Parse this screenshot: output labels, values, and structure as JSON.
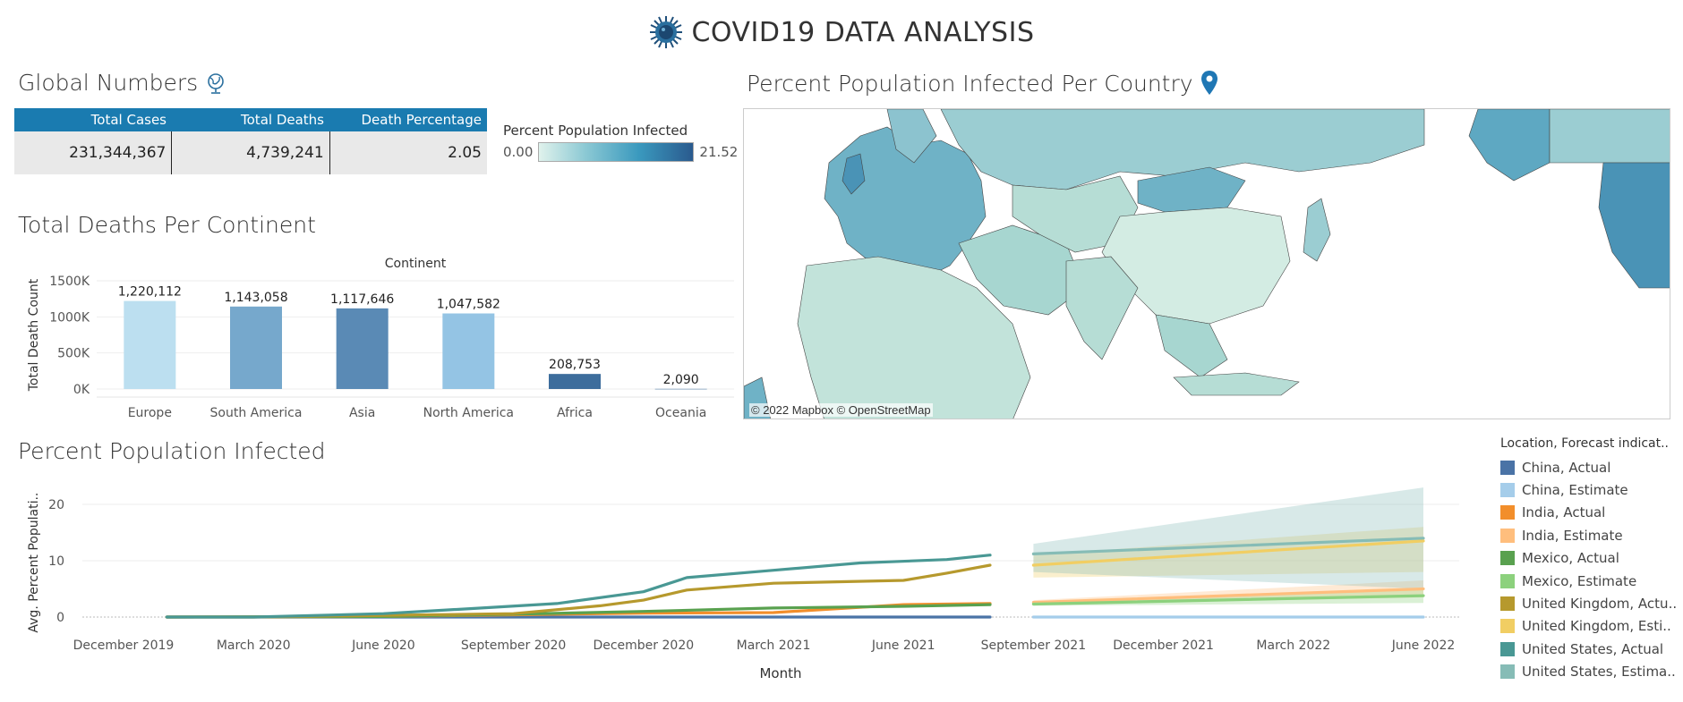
{
  "header": {
    "title": "COVID19 DATA ANALYSIS",
    "icon": "virus-icon"
  },
  "global_numbers": {
    "title": "Global Numbers",
    "icon": "globe-icon",
    "columns": [
      "Total Cases",
      "Total Deaths",
      "Death Percentage"
    ],
    "values": [
      "231,344,367",
      "4,739,241",
      "2.05"
    ]
  },
  "map": {
    "title": "Percent Population Infected Per Country",
    "icon": "map-pin-icon",
    "credit": "© 2022 Mapbox © OpenStreetMap",
    "legend": {
      "title": "Percent Population Infected",
      "min": "0.00",
      "max": "21.52"
    }
  },
  "colors": {
    "header_bar": "#1a7bb0",
    "map_low": "#e0f2ec",
    "map_high": "#2a5a8e"
  },
  "chart_data": [
    {
      "type": "bar",
      "title": "Total Deaths Per Continent",
      "xlabel_top": "Continent",
      "ylabel": "Total Death Count",
      "categories": [
        "Europe",
        "South America",
        "Asia",
        "North America",
        "Africa",
        "Oceania"
      ],
      "values": [
        1220112,
        1143058,
        1117646,
        1047582,
        208753,
        2090
      ],
      "value_labels": [
        "1,220,112",
        "1,143,058",
        "1,117,646",
        "1,047,582",
        "208,753",
        "2,090"
      ],
      "colors": [
        "#bcdff0",
        "#76a8cc",
        "#5a8ab5",
        "#94c4e4",
        "#3d6d9c",
        "#3d6d9c"
      ],
      "yticks": [
        0,
        500000,
        1000000,
        1500000
      ],
      "ytick_labels": [
        "0K",
        "500K",
        "1000K",
        "1500K"
      ],
      "ylim": [
        0,
        1500000
      ]
    },
    {
      "type": "line",
      "title": "Percent Population Infected",
      "xlabel": "Month",
      "ylabel": "Avg. Percent Populati..",
      "xticks": [
        "December 2019",
        "March 2020",
        "June 2020",
        "September 2020",
        "December 2020",
        "March 2021",
        "June 2021",
        "September 2021",
        "December 2021",
        "March 2022",
        "June 2022"
      ],
      "xtick_dates": [
        "2019-12",
        "2020-03",
        "2020-06",
        "2020-09",
        "2020-12",
        "2021-03",
        "2021-06",
        "2021-09",
        "2021-12",
        "2022-03",
        "2022-06"
      ],
      "yticks": [
        0,
        10,
        20
      ],
      "ylim": [
        -1.5,
        24
      ],
      "legend_title": "Location, Forecast indicat..",
      "series": [
        {
          "name": "China, Actual",
          "color": "#4a73a6",
          "kind": "actual",
          "x": [
            "2020-01",
            "2020-03",
            "2020-06",
            "2020-09",
            "2020-12",
            "2021-03",
            "2021-06",
            "2021-08"
          ],
          "y": [
            0,
            0,
            0,
            0,
            0,
            0,
            0,
            0
          ]
        },
        {
          "name": "China, Estimate",
          "color": "#a5cdea",
          "kind": "estimate",
          "x": [
            "2021-09",
            "2022-06"
          ],
          "y": [
            0,
            0
          ]
        },
        {
          "name": "India, Actual",
          "color": "#f28e2b",
          "kind": "actual",
          "x": [
            "2020-01",
            "2020-06",
            "2020-09",
            "2020-12",
            "2021-03",
            "2021-06",
            "2021-08"
          ],
          "y": [
            0,
            0.1,
            0.4,
            0.7,
            0.8,
            2.2,
            2.4
          ]
        },
        {
          "name": "India, Estimate",
          "color": "#ffbe7d",
          "kind": "estimate",
          "x": [
            "2021-09",
            "2022-06"
          ],
          "y": [
            2.6,
            5.0
          ],
          "band": [
            [
              2.2,
              3.0
            ],
            [
              3.5,
              6.5
            ]
          ]
        },
        {
          "name": "Mexico, Actual",
          "color": "#59a14f",
          "kind": "actual",
          "x": [
            "2020-01",
            "2020-06",
            "2020-09",
            "2020-12",
            "2021-03",
            "2021-06",
            "2021-08"
          ],
          "y": [
            0,
            0.1,
            0.5,
            1.0,
            1.6,
            1.9,
            2.2
          ]
        },
        {
          "name": "Mexico, Estimate",
          "color": "#8cd17d",
          "kind": "estimate",
          "x": [
            "2021-09",
            "2022-06"
          ],
          "y": [
            2.3,
            3.8
          ],
          "band": [
            [
              2.0,
              2.6
            ],
            [
              2.5,
              5.0
            ]
          ]
        },
        {
          "name": "United Kingdom, Actu..",
          "color": "#b6992d",
          "kind": "actual",
          "x": [
            "2020-01",
            "2020-03",
            "2020-06",
            "2020-09",
            "2020-11",
            "2020-12",
            "2021-01",
            "2021-03",
            "2021-06",
            "2021-07",
            "2021-08"
          ],
          "y": [
            0,
            0,
            0.3,
            0.6,
            2.0,
            3.0,
            4.8,
            6.0,
            6.5,
            7.8,
            9.2
          ]
        },
        {
          "name": "United Kingdom, Esti..",
          "color": "#f1ce63",
          "kind": "estimate",
          "x": [
            "2021-09",
            "2022-06"
          ],
          "y": [
            9.2,
            13.5
          ],
          "band": [
            [
              7.0,
              11.0
            ],
            [
              8.0,
              16.0
            ]
          ]
        },
        {
          "name": "United States, Actual",
          "color": "#499894",
          "kind": "actual",
          "x": [
            "2020-01",
            "2020-03",
            "2020-06",
            "2020-08",
            "2020-10",
            "2020-12",
            "2021-01",
            "2021-03",
            "2021-05",
            "2021-07",
            "2021-08"
          ],
          "y": [
            0,
            0,
            0.6,
            1.5,
            2.4,
            4.5,
            7.0,
            8.3,
            9.6,
            10.2,
            11.0
          ]
        },
        {
          "name": "United States, Estima..",
          "color": "#86bcb6",
          "kind": "estimate",
          "x": [
            "2021-09",
            "2022-06"
          ],
          "y": [
            11.2,
            14.0
          ],
          "band": [
            [
              8.0,
              13.0
            ],
            [
              5.0,
              23.0
            ]
          ]
        }
      ]
    }
  ]
}
